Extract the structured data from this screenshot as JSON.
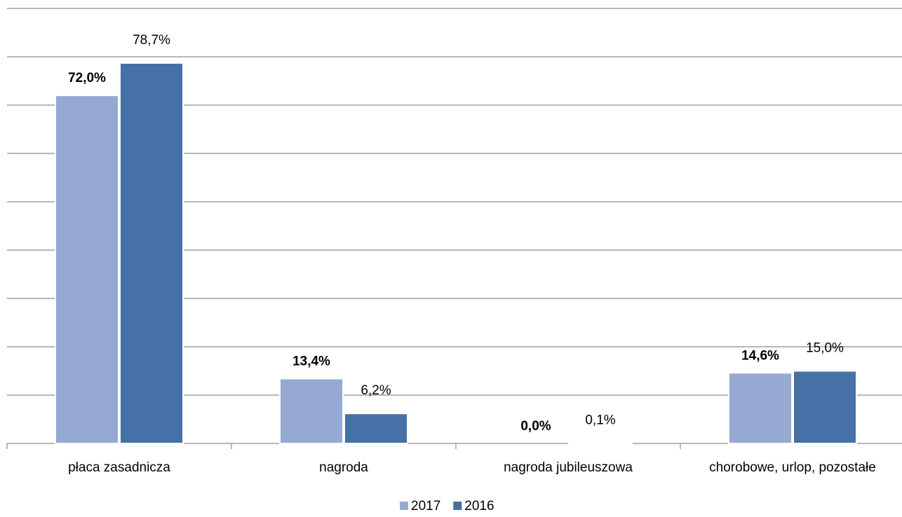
{
  "chart_data": {
    "type": "bar",
    "categories": [
      "płaca zasadnicza",
      "nagroda",
      "nagroda jubileuszowa",
      "chorobowe, urlop, pozostałe"
    ],
    "series": [
      {
        "name": "2017",
        "color": "#95a9d3",
        "values": [
          72.0,
          13.4,
          0.0,
          14.6
        ],
        "value_labels": [
          "72,0%",
          "13,4%",
          "0,0%",
          "14,6%"
        ]
      },
      {
        "name": "2016",
        "color": "#4571a7",
        "values": [
          78.7,
          6.2,
          0.1,
          15.0
        ],
        "value_labels": [
          "78,7%",
          "6,2%",
          "0,1%",
          "15,0%"
        ]
      }
    ],
    "ylim": [
      0,
      90
    ],
    "yticks": [
      0,
      10,
      20,
      30,
      40,
      50,
      60,
      70,
      80,
      90
    ],
    "grid": true,
    "legend": "bottom"
  }
}
